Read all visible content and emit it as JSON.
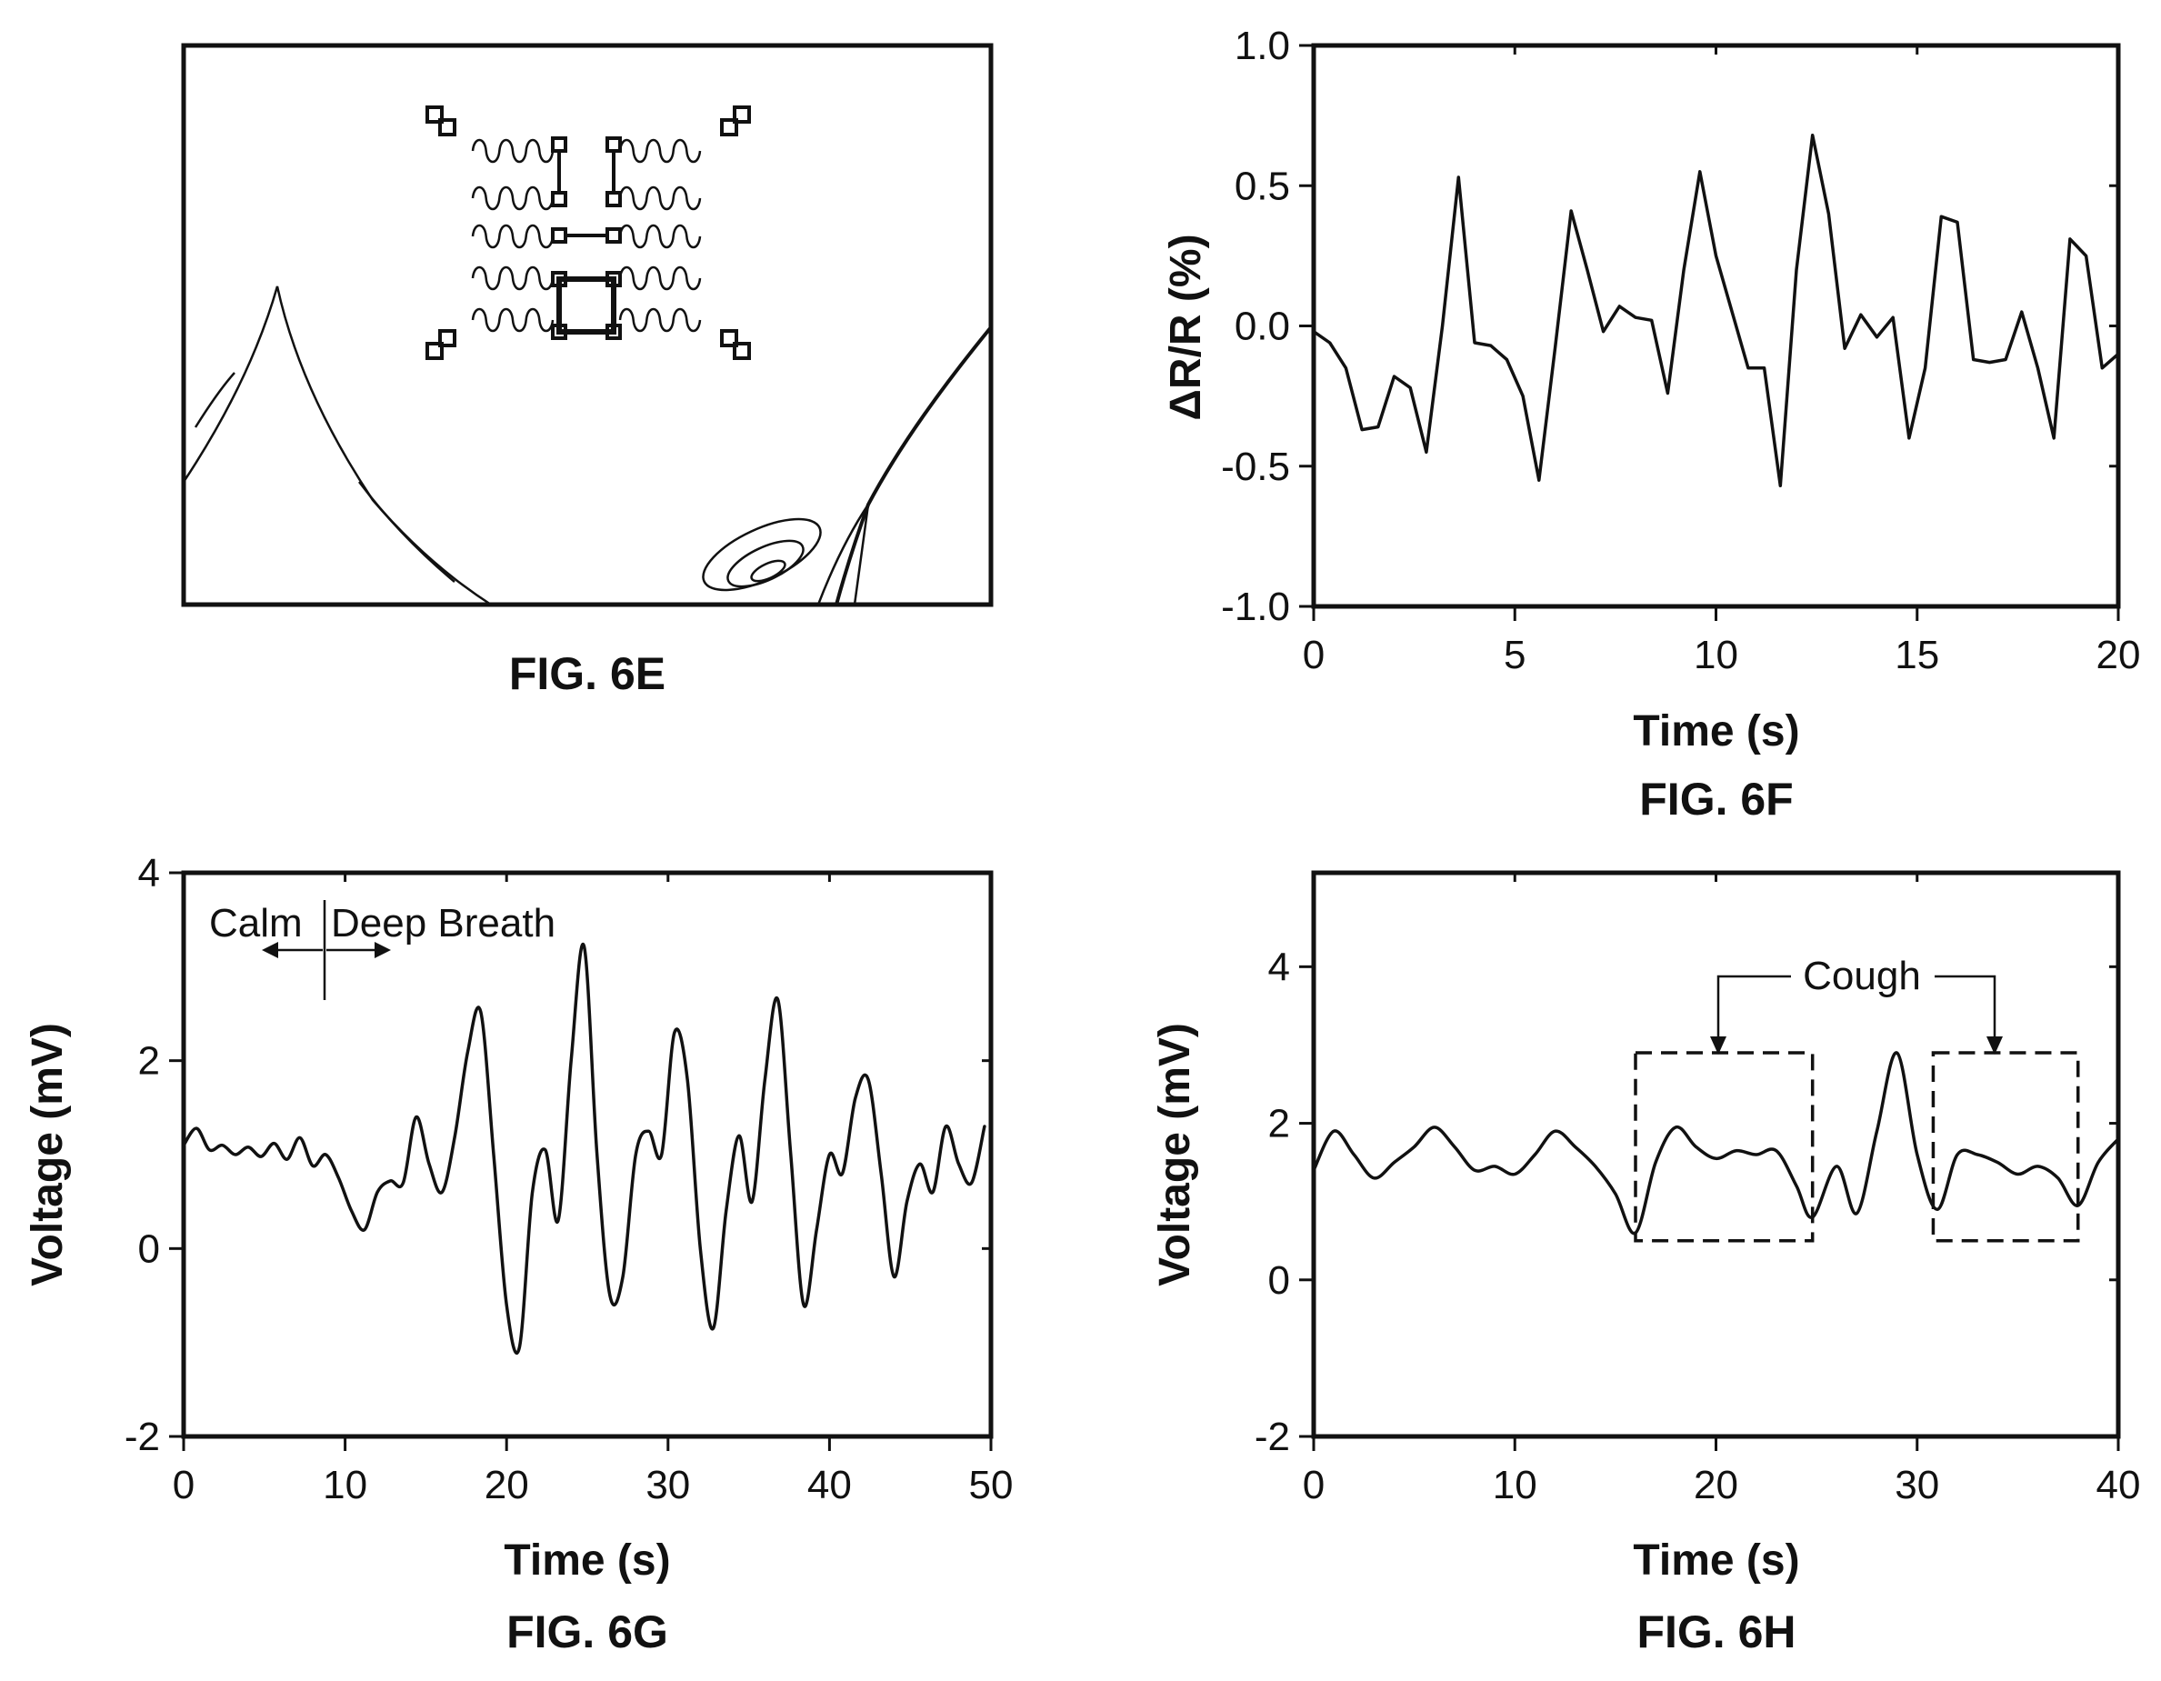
{
  "figures": {
    "fig6e": {
      "label": "FIG. 6E"
    },
    "fig6f": {
      "label": "FIG. 6F"
    },
    "fig6g": {
      "label": "FIG. 6G",
      "annotation_left": "Calm",
      "annotation_right": "Deep Breath"
    },
    "fig6h": {
      "label": "FIG. 6H",
      "annotation": "Cough"
    }
  },
  "chart_data": [
    {
      "id": "fig6f",
      "type": "line",
      "title": "",
      "xlabel": "Time (s)",
      "ylabel": "ΔR/R (%)",
      "xlim": [
        0,
        20
      ],
      "ylim": [
        -1.0,
        1.0
      ],
      "xticks": [
        0,
        5,
        10,
        15,
        20
      ],
      "xtick_labels": [
        "0",
        "5",
        "10",
        "15",
        "20"
      ],
      "yticks": [
        1.0,
        0.5,
        0.0,
        -0.5,
        -1.0
      ],
      "ytick_labels": [
        "1.0",
        "0.5",
        "0.0",
        "-0.5",
        "-1.0"
      ],
      "grid": false,
      "smooth": false,
      "series": [
        {
          "x": [
            0,
            0.4,
            0.8,
            1.2,
            1.6,
            2.0,
            2.4,
            2.8,
            3.2,
            3.6,
            4.0,
            4.4,
            4.8,
            5.2,
            5.6,
            6.0,
            6.4,
            6.8,
            7.2,
            7.6,
            8.0,
            8.4,
            8.8,
            9.2,
            9.6,
            10.0,
            10.4,
            10.8,
            11.2,
            11.6,
            12.0,
            12.4,
            12.8,
            13.2,
            13.6,
            14.0,
            14.4,
            14.8,
            15.2,
            15.6,
            16.0,
            16.4,
            16.8,
            17.2,
            17.6,
            18.0,
            18.4,
            18.8,
            19.2,
            19.6,
            20.0
          ],
          "y": [
            -0.02,
            -0.06,
            -0.15,
            -0.37,
            -0.36,
            -0.18,
            -0.22,
            -0.45,
            0.0,
            0.53,
            -0.06,
            -0.07,
            -0.12,
            -0.25,
            -0.55,
            -0.08,
            0.41,
            0.2,
            -0.02,
            0.07,
            0.03,
            0.02,
            -0.24,
            0.2,
            0.55,
            0.25,
            0.05,
            -0.15,
            -0.15,
            -0.57,
            0.2,
            0.68,
            0.4,
            -0.08,
            0.04,
            -0.04,
            0.03,
            -0.4,
            -0.15,
            0.39,
            0.37,
            -0.12,
            -0.13,
            -0.12,
            0.05,
            -0.15,
            -0.4,
            0.31,
            0.25,
            -0.15,
            -0.1
          ]
        }
      ]
    },
    {
      "id": "fig6g",
      "type": "line",
      "title": "",
      "xlabel": "Time (s)",
      "ylabel": "Voltage (mV)",
      "xlim": [
        0,
        50
      ],
      "ylim": [
        -2,
        4
      ],
      "xticks": [
        0,
        10,
        20,
        30,
        40,
        50
      ],
      "xtick_labels": [
        "0",
        "10",
        "20",
        "30",
        "40",
        "50"
      ],
      "yticks": [
        4,
        2,
        0,
        -2
      ],
      "ytick_labels": [
        "4",
        "2",
        "0",
        "-2"
      ],
      "grid": false,
      "smooth": true,
      "series": [
        {
          "x": [
            0,
            0.8,
            1.6,
            2.4,
            3.2,
            4.0,
            4.8,
            5.6,
            6.4,
            7.2,
            8.0,
            8.8,
            9.6,
            10.4,
            11.2,
            12.0,
            12.8,
            13.6,
            14.4,
            15.2,
            16.0,
            16.8,
            17.6,
            18.4,
            19.2,
            20.0,
            20.8,
            21.6,
            22.4,
            23.2,
            24.0,
            24.8,
            25.6,
            26.4,
            27.2,
            28.0,
            28.8,
            29.6,
            30.4,
            31.2,
            32.0,
            32.8,
            33.6,
            34.4,
            35.2,
            36.0,
            36.8,
            37.6,
            38.4,
            39.2,
            40.0,
            40.8,
            41.6,
            42.4,
            43.2,
            44.0,
            44.8,
            45.6,
            46.4,
            47.2,
            48.0,
            48.8,
            49.6
          ],
          "y": [
            1.1,
            1.28,
            1.05,
            1.1,
            1.0,
            1.08,
            0.98,
            1.12,
            0.95,
            1.18,
            0.88,
            1.0,
            0.75,
            0.4,
            0.2,
            0.6,
            0.72,
            0.7,
            1.4,
            0.9,
            0.6,
            1.2,
            2.1,
            2.52,
            1.0,
            -0.6,
            -1.05,
            0.6,
            1.05,
            0.3,
            2.0,
            3.22,
            1.0,
            -0.5,
            -0.3,
            1.0,
            1.25,
            1.0,
            2.3,
            1.8,
            0.0,
            -0.85,
            0.4,
            1.2,
            0.5,
            1.8,
            2.65,
            1.0,
            -0.6,
            0.2,
            1.0,
            0.8,
            1.6,
            1.8,
            0.8,
            -0.3,
            0.5,
            0.9,
            0.6,
            1.3,
            0.9,
            0.7,
            1.3
          ]
        }
      ]
    },
    {
      "id": "fig6h",
      "type": "line",
      "title": "",
      "xlabel": "Time (s)",
      "ylabel": "Voltage (mV)",
      "xlim": [
        0,
        40
      ],
      "ylim": [
        -2,
        5.2
      ],
      "xticks": [
        0,
        10,
        20,
        30,
        40
      ],
      "xtick_labels": [
        "0",
        "10",
        "20",
        "30",
        "40"
      ],
      "yticks": [
        4,
        2,
        0,
        -2
      ],
      "ytick_labels": [
        "4",
        "2",
        "0",
        "-2"
      ],
      "grid": false,
      "smooth": true,
      "cough_boxes": [
        {
          "x0": 16.0,
          "x1": 24.8,
          "y0": 0.5,
          "y1": 2.9
        },
        {
          "x0": 30.8,
          "x1": 38.0,
          "y0": 0.5,
          "y1": 2.9
        }
      ],
      "series": [
        {
          "x": [
            0,
            1.0,
            2.0,
            3.0,
            4.0,
            5.0,
            6.0,
            7.0,
            8.0,
            9.0,
            10.0,
            11.0,
            12.0,
            13.0,
            14.0,
            15.0,
            16.0,
            17.0,
            18.0,
            19.0,
            20.0,
            21.0,
            22.0,
            23.0,
            24.0,
            24.8,
            26.0,
            27.0,
            28.0,
            29.0,
            30.0,
            31.0,
            32.0,
            33.0,
            34.0,
            35.0,
            36.0,
            37.0,
            38.0,
            39.0,
            40.0
          ],
          "y": [
            1.4,
            1.9,
            1.6,
            1.3,
            1.5,
            1.7,
            1.95,
            1.7,
            1.4,
            1.45,
            1.35,
            1.6,
            1.9,
            1.7,
            1.45,
            1.1,
            0.6,
            1.5,
            1.95,
            1.7,
            1.55,
            1.65,
            1.6,
            1.65,
            1.2,
            0.8,
            1.45,
            0.85,
            1.9,
            2.9,
            1.6,
            0.9,
            1.6,
            1.6,
            1.5,
            1.35,
            1.45,
            1.3,
            0.95,
            1.5,
            1.8
          ]
        }
      ]
    }
  ]
}
